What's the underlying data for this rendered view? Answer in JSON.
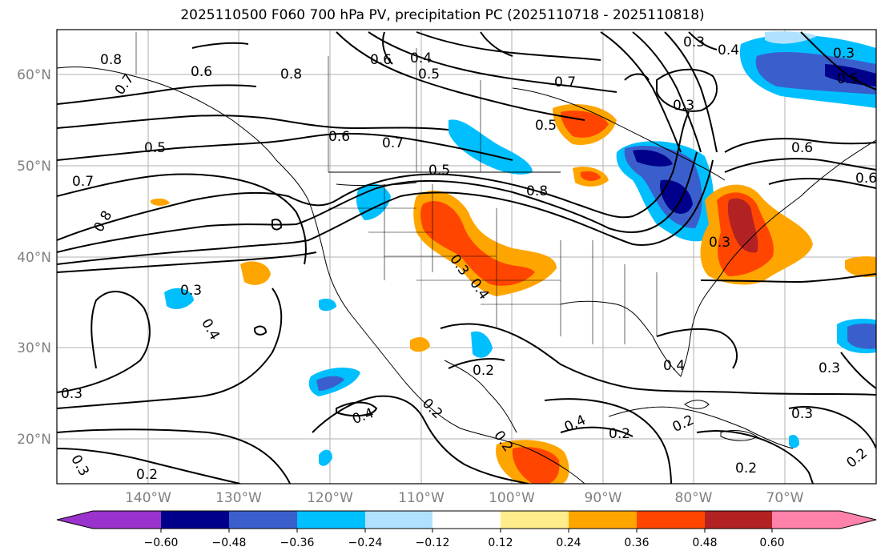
{
  "title": "2025110500 F060 700 hPa PV, precipitation PC (2025110718 - 2025110818)",
  "lat_ticks": [
    "60°N",
    "50°N",
    "40°N",
    "30°N",
    "20°N"
  ],
  "lon_ticks": [
    "140°W",
    "130°W",
    "120°W",
    "110°W",
    "100°W",
    "90°W",
    "80°W",
    "70°W"
  ],
  "colorbar": {
    "ticks": [
      "−0.60",
      "−0.48",
      "−0.36",
      "−0.24",
      "−0.12",
      "0.12",
      "0.24",
      "0.36",
      "0.48",
      "0.60"
    ],
    "colors": [
      "#9a32cd",
      "#00008b",
      "#3a5fcd",
      "#00bfff",
      "#b0e2ff",
      "#ffffff",
      "#ffec8b",
      "#ffa500",
      "#ff4500",
      "#b22222",
      "#ff82ab"
    ]
  },
  "contour_labels": [
    "0.8",
    "0.7",
    "0.5",
    "0.7",
    "0.8",
    "0.8",
    "0.6",
    "0.6",
    "0.4",
    "0.5",
    "0.6",
    "0.7",
    "0.5",
    "0.8",
    "0.7",
    "0.5",
    "0.3",
    "0.3",
    "0.4",
    "0.3",
    "0.5",
    "0.6",
    "0.6",
    "0.3",
    "0.4",
    "0.3",
    "0.3",
    "0.4",
    "0.2",
    "0.4",
    "0.2",
    "0.2",
    "0.4",
    "0.2",
    "0.2",
    "0.4",
    "0.3",
    "0.3",
    "0.2",
    "0.2",
    "0.3",
    "0.2",
    "0.3"
  ]
}
